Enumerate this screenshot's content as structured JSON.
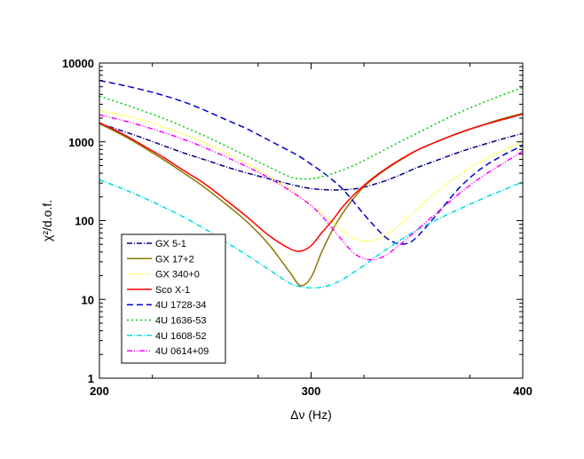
{
  "chart_data": {
    "type": "line",
    "title": "",
    "xlabel": "Δν (Hz)",
    "ylabel": "χ²/d.o.f.",
    "xlim": [
      200,
      400
    ],
    "ylim": [
      1,
      10000
    ],
    "yscale": "log",
    "grid": false,
    "legend_position": "bottom-left",
    "x_ticks": [
      200,
      300,
      400
    ],
    "x_tick_labels": [
      "200",
      "300",
      "400"
    ],
    "y_ticks": [
      1,
      10,
      100,
      1000,
      10000
    ],
    "y_tick_labels": [
      "1",
      "10",
      "100",
      "1000",
      "10000"
    ],
    "x": [
      200,
      210,
      220,
      230,
      240,
      250,
      260,
      270,
      280,
      290,
      295,
      300,
      305,
      310,
      315,
      320,
      325,
      330,
      335,
      340,
      345,
      350,
      360,
      370,
      380,
      390,
      400
    ],
    "series": [
      {
        "name": "GX 5-1",
        "color": "#00007f",
        "dash": "6,2,1,2",
        "values": [
          1700,
          1400,
          1130,
          900,
          720,
          590,
          480,
          400,
          340,
          290,
          270,
          255,
          248,
          245,
          246,
          252,
          265,
          290,
          320,
          360,
          410,
          470,
          590,
          740,
          900,
          1080,
          1280
        ]
      },
      {
        "name": "GX 17+2",
        "color": "#8b7a00",
        "dash": "",
        "values": [
          1700,
          1250,
          880,
          600,
          400,
          260,
          160,
          95,
          50,
          22,
          15,
          19,
          40,
          75,
          125,
          190,
          270,
          350,
          440,
          540,
          650,
          780,
          1020,
          1300,
          1600,
          1950,
          2300
        ]
      },
      {
        "name": "GX 340+0",
        "color": "#ffff00",
        "dash": "1.5,2",
        "values": [
          2500,
          2200,
          1900,
          1550,
          1250,
          960,
          720,
          520,
          370,
          250,
          200,
          160,
          125,
          95,
          75,
          60,
          55,
          56,
          65,
          80,
          105,
          140,
          240,
          380,
          560,
          760,
          1000
        ]
      },
      {
        "name": "Sco X-1",
        "color": "#ff0000",
        "dash": "",
        "values": [
          1750,
          1300,
          920,
          640,
          430,
          290,
          180,
          110,
          65,
          44,
          41,
          48,
          70,
          100,
          150,
          210,
          280,
          360,
          450,
          550,
          660,
          780,
          1020,
          1300,
          1600,
          1900,
          2250
        ]
      },
      {
        "name": "4U 1728-34",
        "color": "#0000cc",
        "dash": "7,4",
        "values": [
          6000,
          5300,
          4600,
          3900,
          3200,
          2500,
          1900,
          1450,
          1050,
          760,
          640,
          520,
          420,
          330,
          250,
          175,
          120,
          85,
          62,
          52,
          51,
          62,
          125,
          260,
          450,
          660,
          900
        ]
      },
      {
        "name": "4U 1636-53",
        "color": "#00cc00",
        "dash": "2,3",
        "values": [
          3800,
          3100,
          2500,
          2000,
          1550,
          1180,
          880,
          650,
          480,
          360,
          340,
          340,
          360,
          395,
          440,
          500,
          580,
          680,
          800,
          940,
          1100,
          1280,
          1750,
          2350,
          3050,
          3900,
          4900
        ]
      },
      {
        "name": "4U 1608-52",
        "color": "#00dddd",
        "dash": "6,2,1,2",
        "values": [
          330,
          260,
          200,
          150,
          110,
          78,
          53,
          36,
          24,
          16,
          14.5,
          14,
          14.3,
          15.5,
          18,
          22,
          27,
          34,
          42,
          52,
          63,
          76,
          105,
          140,
          185,
          240,
          310
        ]
      },
      {
        "name": "4U 0614+09",
        "color": "#ff00ff",
        "dash": "6,2,1,2,1,2",
        "values": [
          2200,
          1900,
          1600,
          1320,
          1070,
          840,
          640,
          480,
          350,
          240,
          195,
          155,
          115,
          80,
          55,
          39,
          33,
          32,
          36,
          45,
          58,
          76,
          130,
          220,
          350,
          520,
          760
        ]
      }
    ]
  }
}
